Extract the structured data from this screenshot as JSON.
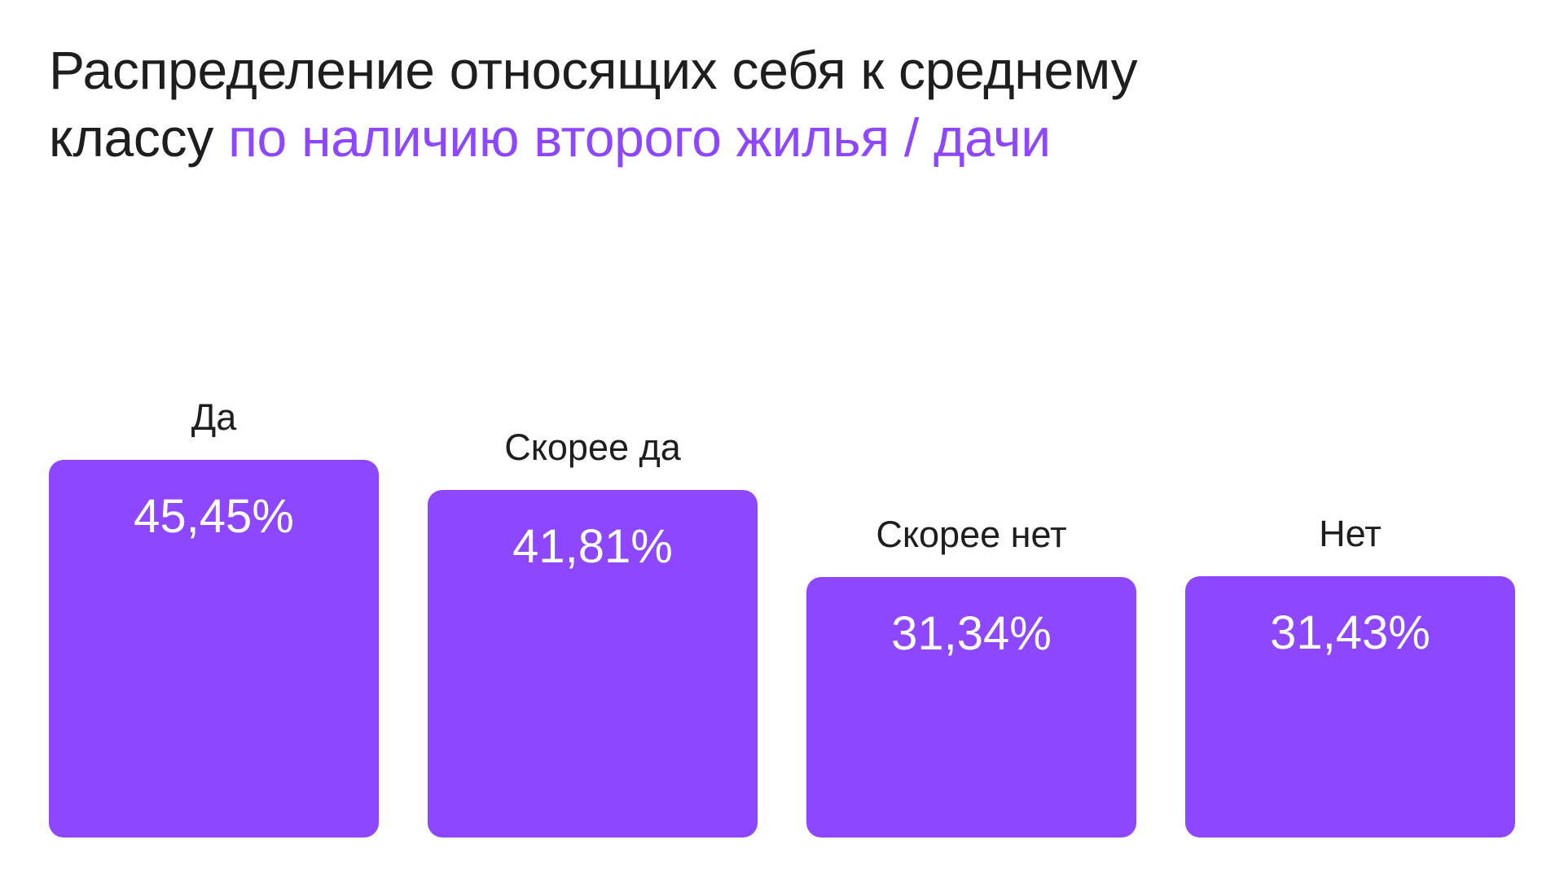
{
  "title": {
    "line1": "Распределение относящих себя к среднему",
    "line2_plain": "классу",
    "line2_accent": "по наличию второго жилья / дачи"
  },
  "colors": {
    "accent": "#8c47ff",
    "bar": "#8c47ff",
    "text": "#1e1e1e",
    "value_text": "#ffffff",
    "background": "#ffffff"
  },
  "chart_data": {
    "type": "bar",
    "title": "Распределение относящих себя к среднему классу по наличию второго жилья / дачи",
    "xlabel": "",
    "ylabel": "",
    "categories": [
      "Да",
      "Скорее да",
      "Скорее нет",
      "Нет"
    ],
    "values": [
      45.45,
      41.81,
      31.34,
      31.43
    ],
    "value_labels": [
      "45,45%",
      "41,81%",
      "31,34%",
      "31,43%"
    ],
    "unit": "%",
    "grid": false,
    "legend": null,
    "axes_visible": false
  },
  "bars": [
    {
      "label": "Да",
      "value_label": "45,45%",
      "value": 45.45
    },
    {
      "label": "Скорее да",
      "value_label": "41,81%",
      "value": 41.81
    },
    {
      "label": "Скорее нет",
      "value_label": "31,34%",
      "value": 31.34
    },
    {
      "label": "Нет",
      "value_label": "31,43%",
      "value": 31.43
    }
  ]
}
